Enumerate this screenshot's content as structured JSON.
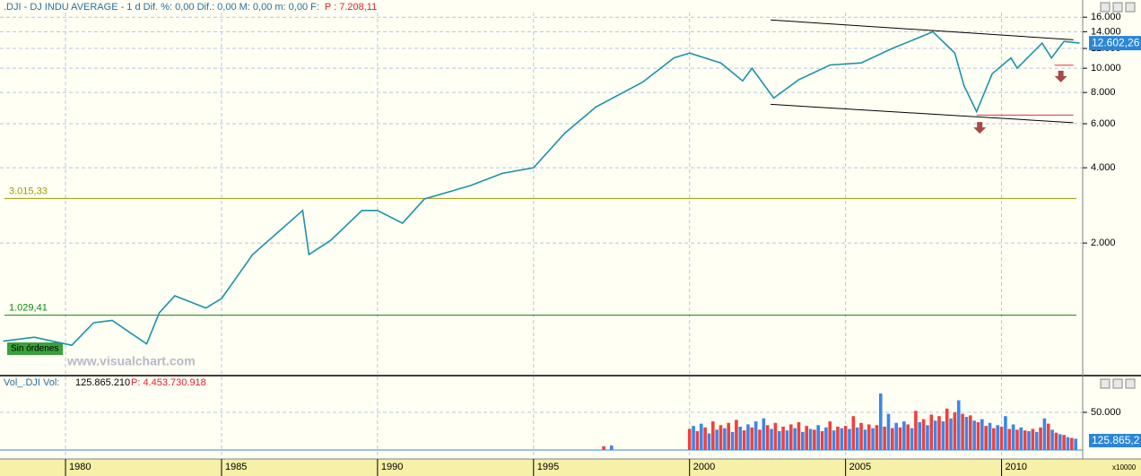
{
  "chart_data": [
    {
      "type": "line",
      "title": ".DJI - DJ INDU AVERAGE - 1 d  Dif. %: 0,00  Dif.: 0,00  M: 0,00  m: 0,00  F:",
      "subtitle": "P : 7.208,11",
      "log_scale": true,
      "grid": true,
      "xlim": [
        1977.9,
        2012.6
      ],
      "xticks": [
        1980,
        1985,
        1990,
        1995,
        2000,
        2005,
        2010
      ],
      "ylim": [
        595,
        16700
      ],
      "yticks": [
        {
          "value": 2000,
          "label": "2.000"
        },
        {
          "value": 4000,
          "label": "4.000"
        },
        {
          "value": 6000,
          "label": "6.000"
        },
        {
          "value": 8000,
          "label": "8.000"
        },
        {
          "value": 10000,
          "label": "10.000"
        },
        {
          "value": 12000,
          "label": "12.000"
        },
        {
          "value": 14000,
          "label": "14.000"
        },
        {
          "value": 16000,
          "label": "16.000"
        }
      ],
      "x": [
        1978.0,
        1979.0,
        1980.2,
        1980.9,
        1981.5,
        1982.6,
        1983.0,
        1983.5,
        1984.5,
        1985.0,
        1986.0,
        1987.6,
        1987.8,
        1988.5,
        1989.5,
        1990.0,
        1990.8,
        1991.5,
        1993.0,
        1994.0,
        1995.0,
        1996.0,
        1997.0,
        1998.5,
        1999.5,
        2000.0,
        2001.0,
        2001.7,
        2002.0,
        2002.7,
        2003.5,
        2004.5,
        2005.5,
        2006.5,
        2007.5,
        2007.8,
        2008.5,
        2008.8,
        2009.2,
        2009.7,
        2010.3,
        2010.5,
        2011.3,
        2011.6,
        2012.0,
        2012.5
      ],
      "series": [
        {
          "color": "#1a93a8",
          "values": [
            810,
            840,
            780,
            960,
            980,
            790,
            1050,
            1230,
            1100,
            1200,
            1800,
            2700,
            1800,
            2050,
            2700,
            2700,
            2400,
            3000,
            3400,
            3800,
            4000,
            5500,
            7000,
            8800,
            11000,
            11500,
            10500,
            8900,
            10000,
            7600,
            9000,
            10300,
            10500,
            12000,
            13500,
            14000,
            11500,
            8500,
            6700,
            9500,
            11000,
            10000,
            12600,
            11000,
            12800,
            12600
          ]
        }
      ],
      "last_value": {
        "value": 12602.26,
        "label": "12.602,26"
      },
      "levels": [
        {
          "value": 3015.33,
          "label": "3.015,33",
          "color": "#a09a00"
        },
        {
          "value": 1029.41,
          "label": "1.029,41",
          "color": "#0a8a0a"
        }
      ],
      "trendlines": [
        {
          "x": [
            2002.6,
            2012.3
          ],
          "y": [
            15600,
            13000
          ],
          "color": "#000000"
        },
        {
          "x": [
            2002.6,
            2012.3
          ],
          "y": [
            7170,
            6060
          ],
          "color": "#000000"
        },
        {
          "x": [
            2009.2,
            2012.3
          ],
          "y": [
            6500,
            6500
          ],
          "color": "#e0303a"
        },
        {
          "x": [
            2011.7,
            2012.3
          ],
          "y": [
            10280,
            10280
          ],
          "color": "#e0303a"
        }
      ],
      "arrows": [
        {
          "x": 2009.3,
          "y": 5800
        },
        {
          "x": 2011.9,
          "y": 9300
        }
      ],
      "badge": "Sin órdenes",
      "watermark": "www.visualchart.com"
    },
    {
      "type": "bar",
      "title": "Vol_.DJI  Vol:",
      "subtitle": "125.865.210",
      "note": "P: 4.453.730.918",
      "last_label": "125.865,2",
      "unit_label": "x10000",
      "ylim": [
        -11900,
        85700
      ],
      "yticks": [
        {
          "value": 50000,
          "label": "50.000"
        }
      ],
      "bar_colors": [
        "#f0403c",
        "#3a86ee"
      ],
      "x": [
        1997.25,
        1997.5,
        2000.0,
        2000.125,
        2000.25,
        2000.375,
        2000.5,
        2000.625,
        2000.75,
        2000.875,
        2001.0,
        2001.125,
        2001.25,
        2001.375,
        2001.5,
        2001.625,
        2001.75,
        2001.875,
        2002.0,
        2002.125,
        2002.25,
        2002.375,
        2002.5,
        2002.625,
        2002.75,
        2002.875,
        2003.0,
        2003.125,
        2003.25,
        2003.375,
        2003.5,
        2003.625,
        2003.75,
        2003.875,
        2004.0,
        2004.125,
        2004.25,
        2004.375,
        2004.5,
        2004.625,
        2004.75,
        2004.875,
        2005.0,
        2005.125,
        2005.25,
        2005.375,
        2005.5,
        2005.625,
        2005.75,
        2005.875,
        2006.0,
        2006.125,
        2006.25,
        2006.375,
        2006.5,
        2006.625,
        2006.75,
        2006.875,
        2007.0,
        2007.125,
        2007.25,
        2007.375,
        2007.5,
        2007.625,
        2007.75,
        2007.875,
        2008.0,
        2008.125,
        2008.25,
        2008.375,
        2008.5,
        2008.625,
        2008.75,
        2008.875,
        2009.0,
        2009.125,
        2009.25,
        2009.375,
        2009.5,
        2009.625,
        2009.75,
        2009.875,
        2010.0,
        2010.125,
        2010.25,
        2010.375,
        2010.5,
        2010.625,
        2010.75,
        2010.875,
        2011.0,
        2011.125,
        2011.25,
        2011.375,
        2011.5,
        2011.625,
        2011.75,
        2011.875,
        2012.0,
        2012.125,
        2012.25,
        2012.375
      ],
      "values": [
        5000,
        6000,
        28000,
        32000,
        25000,
        35000,
        30000,
        22000,
        38000,
        27000,
        33000,
        29000,
        36000,
        24000,
        40000,
        31000,
        26000,
        34000,
        30000,
        38000,
        27000,
        42000,
        33000,
        28000,
        36000,
        25000,
        31000,
        26000,
        34000,
        29000,
        37000,
        24000,
        32000,
        28000,
        27000,
        33000,
        25000,
        30000,
        38000,
        26000,
        31000,
        29000,
        32000,
        28000,
        45000,
        30000,
        36000,
        27000,
        34000,
        29000,
        33000,
        75000,
        31000,
        48000,
        29000,
        36000,
        30000,
        38000,
        34000,
        29000,
        52000,
        37000,
        41000,
        33000,
        47000,
        39000,
        45000,
        38000,
        55000,
        42000,
        50000,
        66000,
        48000,
        44000,
        46000,
        39000,
        37000,
        41000,
        32000,
        36000,
        29000,
        33000,
        31000,
        45000,
        28000,
        34000,
        27000,
        30000,
        26000,
        25000,
        28000,
        24000,
        30000,
        42000,
        35000,
        27000,
        23000,
        21000,
        20000,
        17000,
        16000,
        15000
      ]
    }
  ]
}
